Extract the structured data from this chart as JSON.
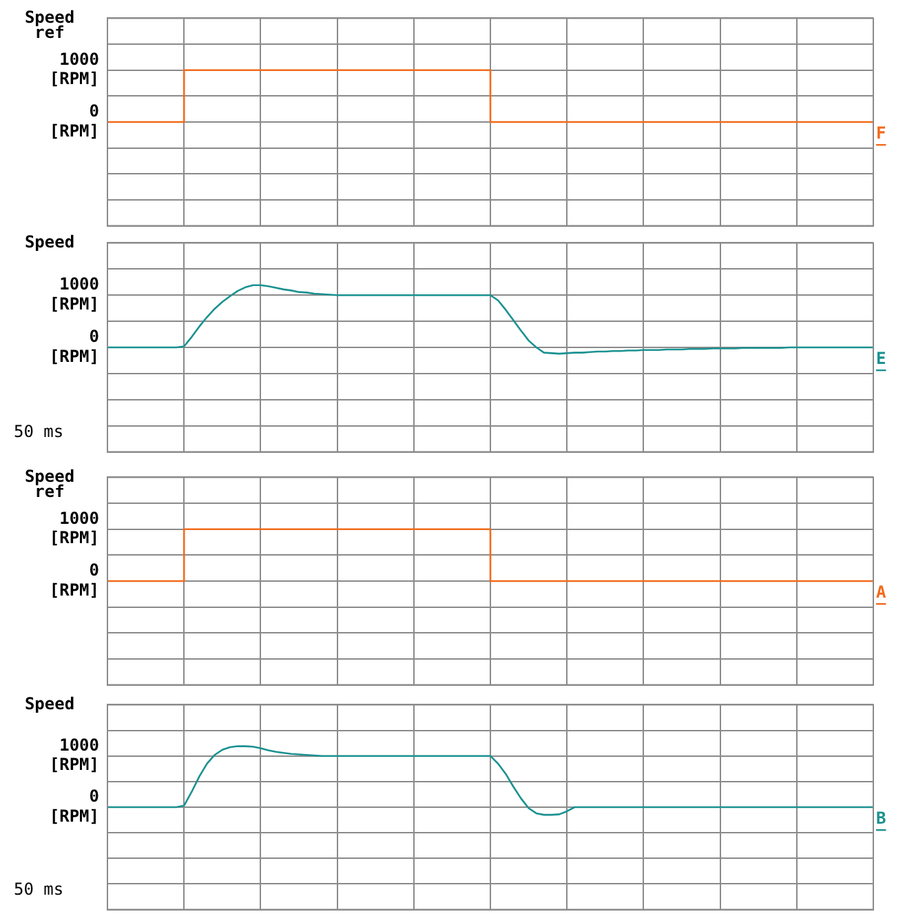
{
  "chart_data": [
    {
      "type": "step",
      "ylabel": "Speed ref",
      "ylim": [
        -2000,
        2000
      ],
      "categories": [
        null,
        null,
        null,
        null,
        null,
        null,
        null,
        null,
        null,
        null,
        null,
        null,
        null,
        null,
        null,
        null,
        null,
        null,
        null,
        null,
        null,
        null,
        null,
        null,
        null,
        null,
        null,
        null,
        null,
        null,
        null,
        null,
        null,
        null,
        null,
        null,
        null,
        null,
        null,
        null,
        null,
        null,
        null,
        null,
        null,
        null,
        null,
        null,
        null,
        null,
        null,
        null,
        null,
        null,
        null,
        null,
        null,
        null,
        null,
        null,
        null,
        null,
        null,
        null,
        null,
        null,
        null,
        null,
        null,
        null,
        null,
        null,
        null,
        null,
        null,
        null,
        null,
        null,
        null,
        null,
        null,
        null,
        null,
        null,
        null,
        null,
        null,
        null,
        null,
        null,
        null,
        null,
        null,
        null,
        null,
        null,
        null,
        null,
        null,
        null,
        null
      ],
      "yticks": [
        {
          "value": -2000,
          "label": null
        },
        {
          "value": -1500,
          "label": null
        },
        {
          "value": -1000,
          "label": null
        },
        {
          "value": -500,
          "label": null
        },
        {
          "value": 0,
          "label": "0 [RPM]"
        },
        {
          "value": 500,
          "label": null
        },
        {
          "value": 1000,
          "label": "1000 [RPM]"
        },
        {
          "value": 1500,
          "label": null
        },
        {
          "value": 2000,
          "label": null
        }
      ],
      "grid": true,
      "legend": false,
      "tick_labels": "y",
      "marker": "none",
      "series": [
        {
          "name": "F",
          "color": "#f26a1b",
          "values": [
            0,
            0,
            0,
            0,
            0,
            0,
            0,
            0,
            0,
            0,
            1000,
            1000,
            1000,
            1000,
            1000,
            1000,
            1000,
            1000,
            1000,
            1000,
            1000,
            1000,
            1000,
            1000,
            1000,
            1000,
            1000,
            1000,
            1000,
            1000,
            1000,
            1000,
            1000,
            1000,
            1000,
            1000,
            1000,
            1000,
            1000,
            1000,
            1000,
            1000,
            1000,
            1000,
            1000,
            1000,
            1000,
            1000,
            1000,
            1000,
            0,
            0,
            0,
            0,
            0,
            0,
            0,
            0,
            0,
            0,
            0,
            0,
            0,
            0,
            0,
            0,
            0,
            0,
            0,
            0,
            0,
            0,
            0,
            0,
            0,
            0,
            0,
            0,
            0,
            0,
            0,
            0,
            0,
            0,
            0,
            0,
            0,
            0,
            0,
            0,
            0,
            0,
            0,
            0,
            0,
            0,
            0,
            0,
            0,
            0,
            0
          ]
        }
      ]
    },
    {
      "type": "line",
      "ylabel": "Speed",
      "annotations": [
        "50 ms"
      ],
      "ylim": [
        -2000,
        2000
      ],
      "categories": [
        null,
        null,
        null,
        null,
        null,
        null,
        null,
        null,
        null,
        null,
        null,
        null,
        null,
        null,
        null,
        null,
        null,
        null,
        null,
        null,
        null,
        null,
        null,
        null,
        null,
        null,
        null,
        null,
        null,
        null,
        null,
        null,
        null,
        null,
        null,
        null,
        null,
        null,
        null,
        null,
        null,
        null,
        null,
        null,
        null,
        null,
        null,
        null,
        null,
        null,
        null,
        null,
        null,
        null,
        null,
        null,
        null,
        null,
        null,
        null,
        null,
        null,
        null,
        null,
        null,
        null,
        null,
        null,
        null,
        null,
        null,
        null,
        null,
        null,
        null,
        null,
        null,
        null,
        null,
        null,
        null,
        null,
        null,
        null,
        null,
        null,
        null,
        null,
        null,
        null,
        null,
        null,
        null,
        null,
        null,
        null,
        null,
        null,
        null,
        null,
        null
      ],
      "yticks": [
        {
          "value": -2000,
          "label": null
        },
        {
          "value": -1500,
          "label": null
        },
        {
          "value": -1000,
          "label": null
        },
        {
          "value": -500,
          "label": null
        },
        {
          "value": 0,
          "label": "0 [RPM]"
        },
        {
          "value": 500,
          "label": null
        },
        {
          "value": 1000,
          "label": "1000 [RPM]"
        },
        {
          "value": 1500,
          "label": null
        },
        {
          "value": 2000,
          "label": null
        }
      ],
      "grid": true,
      "legend": false,
      "tick_labels": "y",
      "marker": "none",
      "series": [
        {
          "name": "E",
          "color": "#1b9191",
          "values": [
            0,
            0,
            0,
            0,
            0,
            0,
            0,
            0,
            0,
            0,
            20,
            200,
            400,
            580,
            740,
            870,
            980,
            1080,
            1150,
            1190,
            1190,
            1170,
            1140,
            1110,
            1090,
            1060,
            1050,
            1030,
            1020,
            1010,
            1000,
            1000,
            1000,
            1000,
            1000,
            1000,
            1000,
            1000,
            1000,
            1000,
            1000,
            1000,
            1000,
            1000,
            1000,
            1000,
            1000,
            1000,
            1000,
            1000,
            1000,
            900,
            720,
            520,
            320,
            130,
            0,
            -100,
            -110,
            -120,
            -110,
            -100,
            -100,
            -90,
            -80,
            -80,
            -70,
            -70,
            -60,
            -60,
            -50,
            -50,
            -50,
            -40,
            -40,
            -40,
            -30,
            -30,
            -30,
            -20,
            -20,
            -20,
            -20,
            -10,
            -10,
            -10,
            -10,
            -10,
            -10,
            0,
            0,
            0,
            0,
            0,
            0,
            0,
            0,
            0,
            0,
            0,
            0
          ]
        }
      ]
    },
    {
      "type": "step",
      "ylabel": "Speed ref",
      "ylim": [
        -2000,
        2000
      ],
      "categories": [
        null,
        null,
        null,
        null,
        null,
        null,
        null,
        null,
        null,
        null,
        null,
        null,
        null,
        null,
        null,
        null,
        null,
        null,
        null,
        null,
        null,
        null,
        null,
        null,
        null,
        null,
        null,
        null,
        null,
        null,
        null,
        null,
        null,
        null,
        null,
        null,
        null,
        null,
        null,
        null,
        null,
        null,
        null,
        null,
        null,
        null,
        null,
        null,
        null,
        null,
        null,
        null,
        null,
        null,
        null,
        null,
        null,
        null,
        null,
        null,
        null,
        null,
        null,
        null,
        null,
        null,
        null,
        null,
        null,
        null,
        null,
        null,
        null,
        null,
        null,
        null,
        null,
        null,
        null,
        null,
        null,
        null,
        null,
        null,
        null,
        null,
        null,
        null,
        null,
        null,
        null,
        null,
        null,
        null,
        null,
        null,
        null,
        null,
        null,
        null,
        null
      ],
      "yticks": [
        {
          "value": -2000,
          "label": null
        },
        {
          "value": -1500,
          "label": null
        },
        {
          "value": -1000,
          "label": null
        },
        {
          "value": -500,
          "label": null
        },
        {
          "value": 0,
          "label": "0 [RPM]"
        },
        {
          "value": 500,
          "label": null
        },
        {
          "value": 1000,
          "label": "1000 [RPM]"
        },
        {
          "value": 1500,
          "label": null
        },
        {
          "value": 2000,
          "label": null
        }
      ],
      "grid": true,
      "legend": false,
      "tick_labels": "y",
      "marker": "none",
      "series": [
        {
          "name": "A",
          "color": "#f26a1b",
          "values": [
            0,
            0,
            0,
            0,
            0,
            0,
            0,
            0,
            0,
            0,
            1000,
            1000,
            1000,
            1000,
            1000,
            1000,
            1000,
            1000,
            1000,
            1000,
            1000,
            1000,
            1000,
            1000,
            1000,
            1000,
            1000,
            1000,
            1000,
            1000,
            1000,
            1000,
            1000,
            1000,
            1000,
            1000,
            1000,
            1000,
            1000,
            1000,
            1000,
            1000,
            1000,
            1000,
            1000,
            1000,
            1000,
            1000,
            1000,
            1000,
            0,
            0,
            0,
            0,
            0,
            0,
            0,
            0,
            0,
            0,
            0,
            0,
            0,
            0,
            0,
            0,
            0,
            0,
            0,
            0,
            0,
            0,
            0,
            0,
            0,
            0,
            0,
            0,
            0,
            0,
            0,
            0,
            0,
            0,
            0,
            0,
            0,
            0,
            0,
            0,
            0,
            0,
            0,
            0,
            0,
            0,
            0,
            0,
            0,
            0,
            0
          ]
        }
      ]
    },
    {
      "type": "line",
      "ylabel": "Speed",
      "annotations": [
        "50 ms"
      ],
      "ylim": [
        -2000,
        2000
      ],
      "categories": [
        null,
        null,
        null,
        null,
        null,
        null,
        null,
        null,
        null,
        null,
        null,
        null,
        null,
        null,
        null,
        null,
        null,
        null,
        null,
        null,
        null,
        null,
        null,
        null,
        null,
        null,
        null,
        null,
        null,
        null,
        null,
        null,
        null,
        null,
        null,
        null,
        null,
        null,
        null,
        null,
        null,
        null,
        null,
        null,
        null,
        null,
        null,
        null,
        null,
        null,
        null,
        null,
        null,
        null,
        null,
        null,
        null,
        null,
        null,
        null,
        null,
        null,
        null,
        null,
        null,
        null,
        null,
        null,
        null,
        null,
        null,
        null,
        null,
        null,
        null,
        null,
        null,
        null,
        null,
        null,
        null,
        null,
        null,
        null,
        null,
        null,
        null,
        null,
        null,
        null,
        null,
        null,
        null,
        null,
        null,
        null,
        null,
        null,
        null,
        null,
        null
      ],
      "yticks": [
        {
          "value": -2000,
          "label": null
        },
        {
          "value": -1500,
          "label": null
        },
        {
          "value": -1000,
          "label": null
        },
        {
          "value": -500,
          "label": null
        },
        {
          "value": 0,
          "label": "0 [RPM]"
        },
        {
          "value": 500,
          "label": null
        },
        {
          "value": 1000,
          "label": "1000 [RPM]"
        },
        {
          "value": 1500,
          "label": null
        },
        {
          "value": 2000,
          "label": null
        }
      ],
      "grid": true,
      "legend": false,
      "tick_labels": "y",
      "marker": "none",
      "series": [
        {
          "name": "B",
          "color": "#1b9191",
          "values": [
            0,
            0,
            0,
            0,
            0,
            0,
            0,
            0,
            0,
            0,
            30,
            300,
            600,
            850,
            1020,
            1120,
            1170,
            1190,
            1190,
            1180,
            1150,
            1110,
            1080,
            1060,
            1040,
            1030,
            1020,
            1010,
            1000,
            1000,
            1000,
            1000,
            1000,
            1000,
            1000,
            1000,
            1000,
            1000,
            1000,
            1000,
            1000,
            1000,
            1000,
            1000,
            1000,
            1000,
            1000,
            1000,
            1000,
            1000,
            1000,
            850,
            650,
            400,
            170,
            -20,
            -120,
            -150,
            -150,
            -140,
            -80,
            0,
            0,
            0,
            0,
            0,
            0,
            0,
            0,
            0,
            0,
            0,
            0,
            0,
            0,
            0,
            0,
            0,
            0,
            0,
            0,
            0,
            0,
            0,
            0,
            0,
            0,
            0,
            0,
            0,
            0,
            0,
            0,
            0,
            0,
            0,
            0,
            0,
            0,
            0,
            0
          ]
        }
      ]
    }
  ]
}
